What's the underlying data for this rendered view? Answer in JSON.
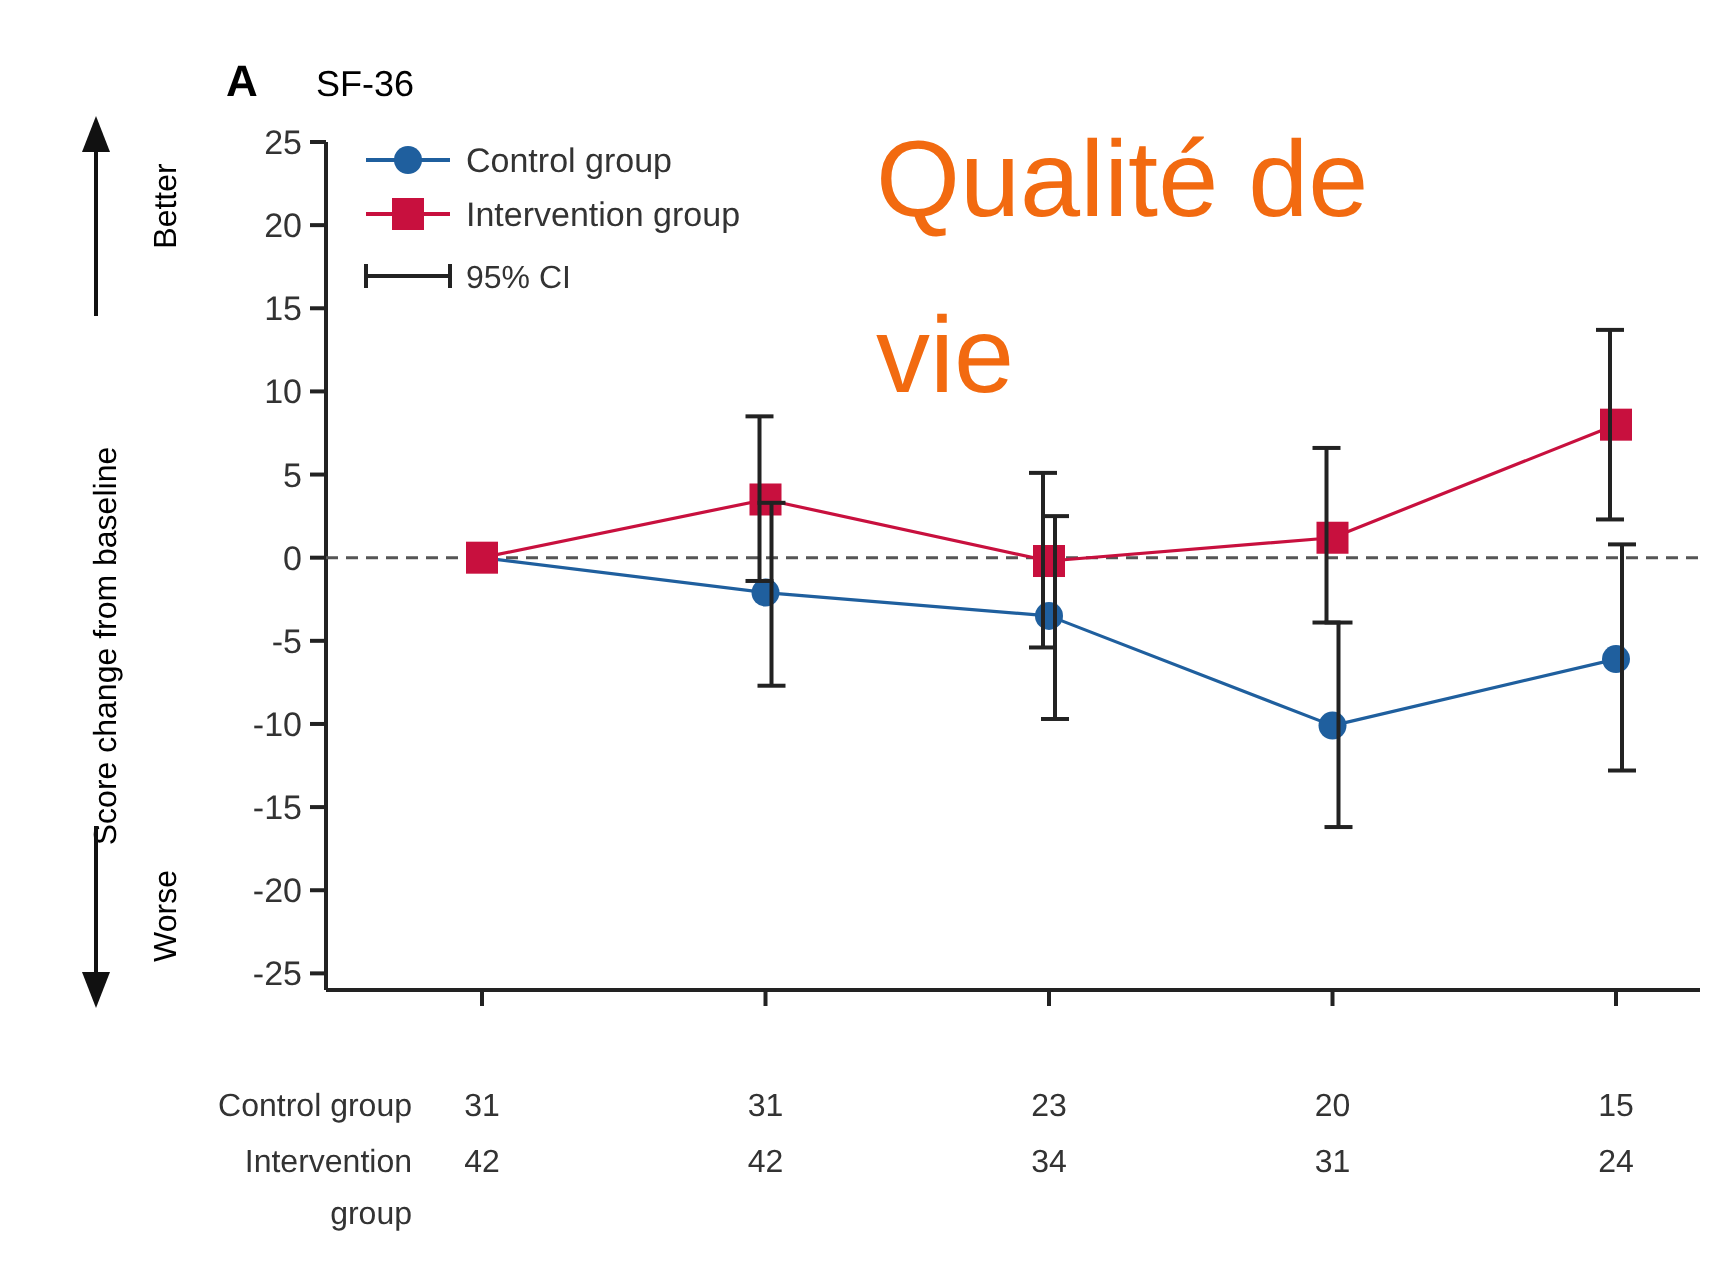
{
  "chart_data": {
    "type": "line",
    "title": "SF-36",
    "ylabel": "Score change from baseline",
    "categories": [
      null,
      null,
      null,
      null,
      null
    ],
    "series": [
      {
        "name": "Control group",
        "color": "#1f5f9e",
        "marker": "circle",
        "values": [
          0,
          -2.1,
          -3.5,
          -10.1,
          -6.1
        ],
        "errors": [
          null,
          [
            -7.7,
            3.3
          ],
          [
            -9.7,
            2.5
          ],
          [
            -16.2,
            -3.9
          ],
          [
            -12.8,
            0.8
          ]
        ]
      },
      {
        "name": "Intervention group",
        "color": "#c8103e",
        "marker": "square",
        "values": [
          0,
          3.5,
          -0.2,
          1.2,
          8.0
        ],
        "errors": [
          null,
          [
            -1.4,
            8.5
          ],
          [
            -5.4,
            5.1
          ],
          [
            -3.9,
            6.6
          ],
          [
            2.3,
            13.7
          ]
        ]
      }
    ],
    "ylim": [
      -26,
      25
    ],
    "yticks": [
      25,
      20,
      15,
      10,
      5,
      0,
      -5,
      -10,
      -15,
      -20,
      -25
    ],
    "ref_lines": [
      {
        "axis": "y",
        "value": 0,
        "color": "#555555",
        "line_style": "dashed"
      }
    ],
    "legend": "top left",
    "grid": false,
    "line_style": "solid",
    "annotations": [
      "A",
      "95% CI",
      "Better",
      "Worse",
      "Qualité de vie",
      "Control group",
      "31",
      "31",
      "23",
      "20",
      "15",
      "Intervention group",
      "42",
      "42",
      "34",
      "31",
      "24"
    ]
  }
}
